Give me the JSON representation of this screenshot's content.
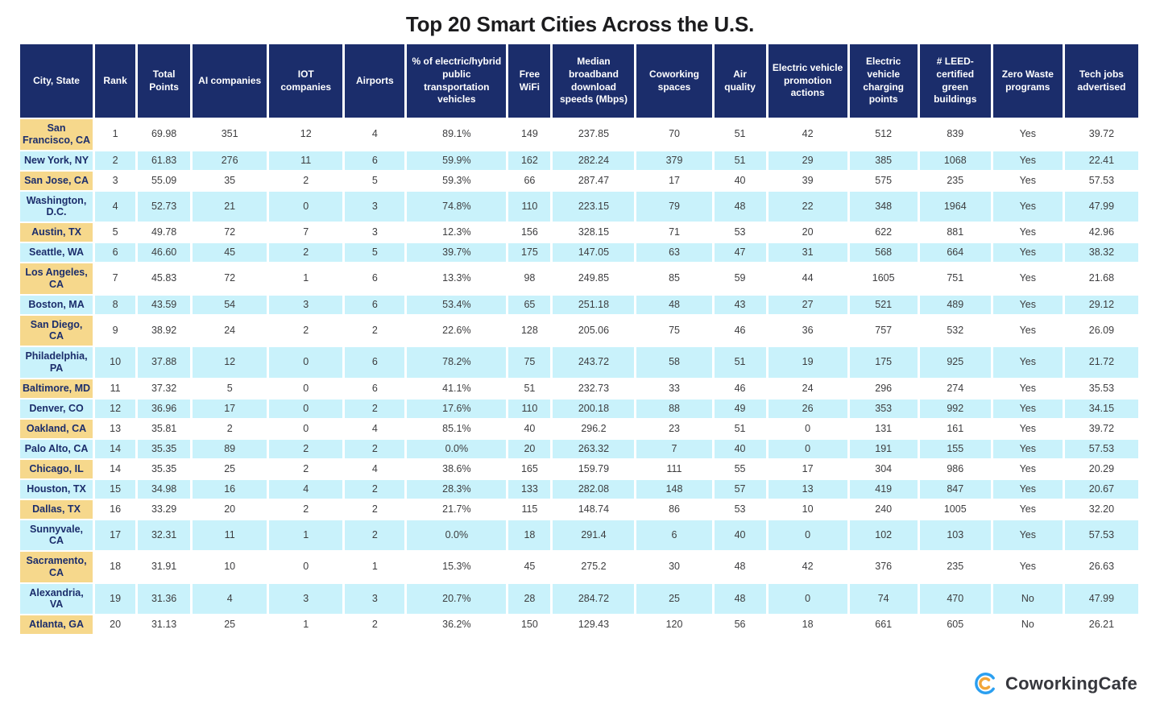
{
  "title": "Top 20 Smart Cities Across the U.S.",
  "logo": {
    "name": "CoworkingCafe"
  },
  "colors": {
    "header_bg": "#1b2d6b",
    "city_column_bg": "#f6d88c",
    "alt_row_bg": "#c9f2fb",
    "logo_blue": "#2b9ff0",
    "logo_orange": "#f2a63a"
  },
  "chart_data": {
    "type": "table",
    "title": "Top 20 Smart Cities Across the U.S.",
    "columns": [
      "City, State",
      "Rank",
      "Total Points",
      "AI companies",
      "IOT companies",
      "Airports",
      "% of electric/hybrid public transportation vehicles",
      "Free WiFi",
      "Median broadband download speeds (Mbps)",
      "Coworking spaces",
      "Air quality",
      "Electric vehicle promotion actions",
      "Electric vehicle charging points",
      "# LEED-certified green buildings",
      "Zero Waste programs",
      "Tech jobs advertised"
    ],
    "rows": [
      [
        "San Francisco, CA",
        "1",
        "69.98",
        "351",
        "12",
        "4",
        "89.1%",
        "149",
        "237.85",
        "70",
        "51",
        "42",
        "512",
        "839",
        "Yes",
        "39.72"
      ],
      [
        "New York, NY",
        "2",
        "61.83",
        "276",
        "11",
        "6",
        "59.9%",
        "162",
        "282.24",
        "379",
        "51",
        "29",
        "385",
        "1068",
        "Yes",
        "22.41"
      ],
      [
        "San Jose, CA",
        "3",
        "55.09",
        "35",
        "2",
        "5",
        "59.3%",
        "66",
        "287.47",
        "17",
        "40",
        "39",
        "575",
        "235",
        "Yes",
        "57.53"
      ],
      [
        "Washington, D.C.",
        "4",
        "52.73",
        "21",
        "0",
        "3",
        "74.8%",
        "110",
        "223.15",
        "79",
        "48",
        "22",
        "348",
        "1964",
        "Yes",
        "47.99"
      ],
      [
        "Austin, TX",
        "5",
        "49.78",
        "72",
        "7",
        "3",
        "12.3%",
        "156",
        "328.15",
        "71",
        "53",
        "20",
        "622",
        "881",
        "Yes",
        "42.96"
      ],
      [
        "Seattle, WA",
        "6",
        "46.60",
        "45",
        "2",
        "5",
        "39.7%",
        "175",
        "147.05",
        "63",
        "47",
        "31",
        "568",
        "664",
        "Yes",
        "38.32"
      ],
      [
        "Los Angeles, CA",
        "7",
        "45.83",
        "72",
        "1",
        "6",
        "13.3%",
        "98",
        "249.85",
        "85",
        "59",
        "44",
        "1605",
        "751",
        "Yes",
        "21.68"
      ],
      [
        "Boston, MA",
        "8",
        "43.59",
        "54",
        "3",
        "6",
        "53.4%",
        "65",
        "251.18",
        "48",
        "43",
        "27",
        "521",
        "489",
        "Yes",
        "29.12"
      ],
      [
        "San Diego, CA",
        "9",
        "38.92",
        "24",
        "2",
        "2",
        "22.6%",
        "128",
        "205.06",
        "75",
        "46",
        "36",
        "757",
        "532",
        "Yes",
        "26.09"
      ],
      [
        "Philadelphia, PA",
        "10",
        "37.88",
        "12",
        "0",
        "6",
        "78.2%",
        "75",
        "243.72",
        "58",
        "51",
        "19",
        "175",
        "925",
        "Yes",
        "21.72"
      ],
      [
        "Baltimore, MD",
        "11",
        "37.32",
        "5",
        "0",
        "6",
        "41.1%",
        "51",
        "232.73",
        "33",
        "46",
        "24",
        "296",
        "274",
        "Yes",
        "35.53"
      ],
      [
        "Denver, CO",
        "12",
        "36.96",
        "17",
        "0",
        "2",
        "17.6%",
        "110",
        "200.18",
        "88",
        "49",
        "26",
        "353",
        "992",
        "Yes",
        "34.15"
      ],
      [
        "Oakland, CA",
        "13",
        "35.81",
        "2",
        "0",
        "4",
        "85.1%",
        "40",
        "296.2",
        "23",
        "51",
        "0",
        "131",
        "161",
        "Yes",
        "39.72"
      ],
      [
        "Palo Alto, CA",
        "14",
        "35.35",
        "89",
        "2",
        "2",
        "0.0%",
        "20",
        "263.32",
        "7",
        "40",
        "0",
        "191",
        "155",
        "Yes",
        "57.53"
      ],
      [
        "Chicago, IL",
        "14",
        "35.35",
        "25",
        "2",
        "4",
        "38.6%",
        "165",
        "159.79",
        "111",
        "55",
        "17",
        "304",
        "986",
        "Yes",
        "20.29"
      ],
      [
        "Houston, TX",
        "15",
        "34.98",
        "16",
        "4",
        "2",
        "28.3%",
        "133",
        "282.08",
        "148",
        "57",
        "13",
        "419",
        "847",
        "Yes",
        "20.67"
      ],
      [
        "Dallas, TX",
        "16",
        "33.29",
        "20",
        "2",
        "2",
        "21.7%",
        "115",
        "148.74",
        "86",
        "53",
        "10",
        "240",
        "1005",
        "Yes",
        "32.20"
      ],
      [
        "Sunnyvale, CA",
        "17",
        "32.31",
        "11",
        "1",
        "2",
        "0.0%",
        "18",
        "291.4",
        "6",
        "40",
        "0",
        "102",
        "103",
        "Yes",
        "57.53"
      ],
      [
        "Sacramento, CA",
        "18",
        "31.91",
        "10",
        "0",
        "1",
        "15.3%",
        "45",
        "275.2",
        "30",
        "48",
        "42",
        "376",
        "235",
        "Yes",
        "26.63"
      ],
      [
        "Alexandria, VA",
        "19",
        "31.36",
        "4",
        "3",
        "3",
        "20.7%",
        "28",
        "284.72",
        "25",
        "48",
        "0",
        "74",
        "470",
        "No",
        "47.99"
      ],
      [
        "Atlanta, GA",
        "20",
        "31.13",
        "25",
        "1",
        "2",
        "36.2%",
        "150",
        "129.43",
        "120",
        "56",
        "18",
        "661",
        "605",
        "No",
        "26.21"
      ]
    ]
  }
}
